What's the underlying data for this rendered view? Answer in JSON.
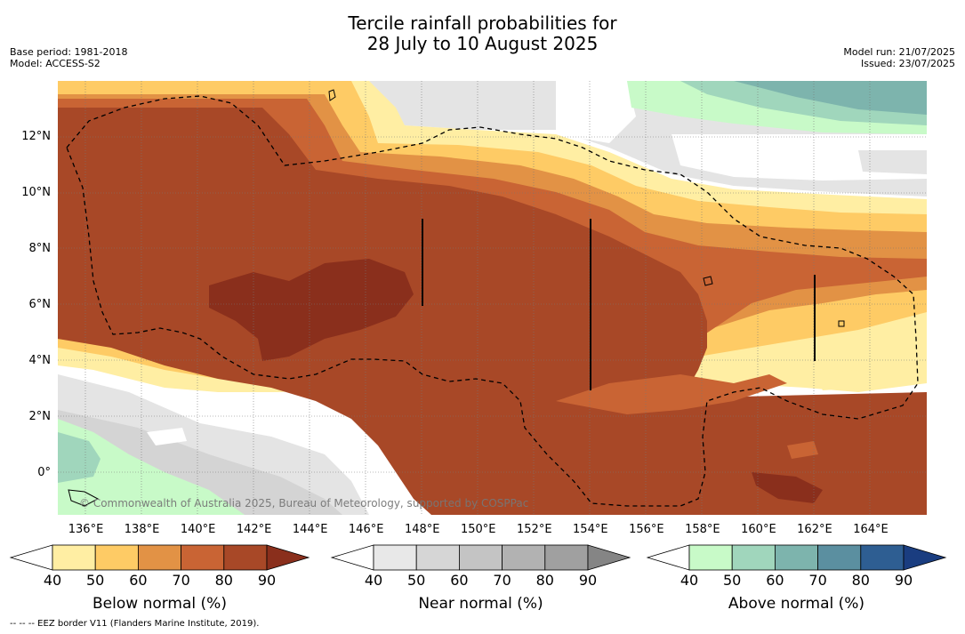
{
  "title": {
    "line1": "Tercile rainfall probabilities for",
    "line2": "28 July to 10 August 2025"
  },
  "meta": {
    "base_period": "Base period: 1981-2018",
    "model": "Model: ACCESS-S2",
    "model_run": "Model run: 21/07/2025",
    "issued": "Issued: 23/07/2025"
  },
  "map": {
    "lat_ticks": [
      {
        "value": 12,
        "label": "12°N"
      },
      {
        "value": 10,
        "label": "10°N"
      },
      {
        "value": 8,
        "label": "8°N"
      },
      {
        "value": 6,
        "label": "6°N"
      },
      {
        "value": 4,
        "label": "4°N"
      },
      {
        "value": 2,
        "label": "2°N"
      },
      {
        "value": 0,
        "label": "0°"
      }
    ],
    "lon_ticks": [
      {
        "value": 136,
        "label": "136°E"
      },
      {
        "value": 138,
        "label": "138°E"
      },
      {
        "value": 140,
        "label": "140°E"
      },
      {
        "value": 142,
        "label": "142°E"
      },
      {
        "value": 144,
        "label": "144°E"
      },
      {
        "value": 146,
        "label": "146°E"
      },
      {
        "value": 148,
        "label": "148°E"
      },
      {
        "value": 150,
        "label": "150°E"
      },
      {
        "value": 152,
        "label": "152°E"
      },
      {
        "value": 154,
        "label": "154°E"
      },
      {
        "value": 156,
        "label": "156°E"
      },
      {
        "value": 158,
        "label": "158°E"
      },
      {
        "value": 160,
        "label": "160°E"
      },
      {
        "value": 162,
        "label": "162°E"
      },
      {
        "value": 164,
        "label": "164°E"
      }
    ],
    "lon_range": [
      135,
      166
    ],
    "lat_range": [
      -1.5,
      14
    ],
    "copyright": "© Commonwealth of Australia 2025, Bureau of Meteorology, supported by COSPPac"
  },
  "legends": [
    {
      "label": "Below normal (%)",
      "ticks": [
        "40",
        "50",
        "60",
        "70",
        "80",
        "90"
      ],
      "colors": [
        "#ffffff",
        "#ffeea3",
        "#fecb65",
        "#e29245",
        "#c96434",
        "#a84827",
        "#8a2f1c"
      ]
    },
    {
      "label": "Near normal (%)",
      "ticks": [
        "40",
        "50",
        "60",
        "70",
        "80",
        "90"
      ],
      "colors": [
        "#ffffff",
        "#e8e8e8",
        "#d6d6d6",
        "#c4c4c4",
        "#b2b2b2",
        "#a0a0a0",
        "#858585"
      ]
    },
    {
      "label": "Above normal (%)",
      "ticks": [
        "40",
        "50",
        "60",
        "70",
        "80",
        "90"
      ],
      "colors": [
        "#ffffff",
        "#c8fac8",
        "#a0d6bc",
        "#7db4ad",
        "#5b8fa0",
        "#2e5e92",
        "#1a3d80"
      ]
    }
  ],
  "footnote": "-- -- -- EEZ border V11 (Flanders Marine Institute, 2019)."
}
